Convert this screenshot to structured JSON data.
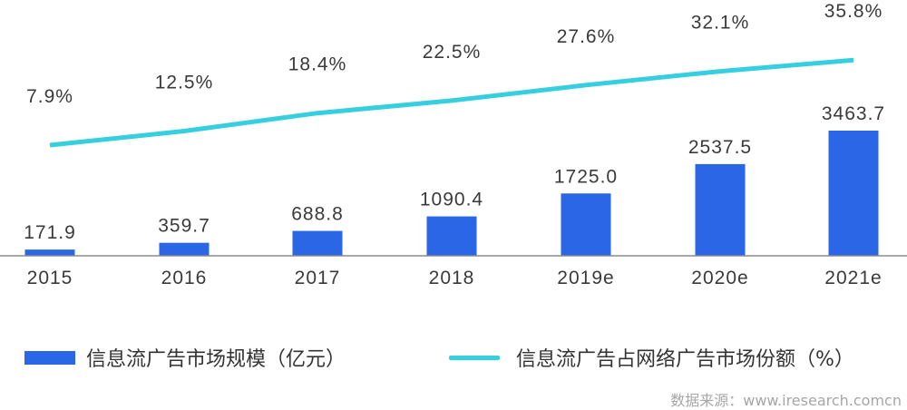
{
  "chart_data": {
    "type": "bar+line",
    "title": "",
    "categories": [
      "2015",
      "2016",
      "2017",
      "2018",
      "2019e",
      "2020e",
      "2021e"
    ],
    "series": [
      {
        "name": "信息流广告市场规模（亿元）",
        "type": "bar",
        "axis": "left",
        "color": "#2a66e6",
        "values": [
          171.9,
          359.7,
          688.8,
          1090.4,
          1725.0,
          2537.5,
          3463.7
        ],
        "labels": [
          "171.9",
          "359.7",
          "688.8",
          "1090.4",
          "1725.0",
          "2537.5",
          "3463.7"
        ]
      },
      {
        "name": "信息流广告占网络广告市场份额（%）",
        "type": "line",
        "axis": "right",
        "color": "#36cfe0",
        "values": [
          7.9,
          12.5,
          18.4,
          22.5,
          27.6,
          32.1,
          35.8
        ],
        "labels": [
          "7.9%",
          "12.5%",
          "18.4%",
          "22.5%",
          "27.6%",
          "32.1%",
          "35.8%"
        ]
      }
    ],
    "xlabel": "",
    "ylabel": "",
    "grid": false,
    "axes_visible": false,
    "legend_position": "bottom"
  },
  "legend": {
    "bar_label": "信息流广告市场规模（亿元）",
    "line_label": "信息流广告占网络广告市场份额（%）"
  },
  "source": "数据来源：www.iresearch.comcn",
  "colors": {
    "bar": "#2a66e6",
    "line": "#36cfe0",
    "axis": "#8c8c8c",
    "text": "#3a3a3a",
    "source": "#a6a6a6"
  }
}
